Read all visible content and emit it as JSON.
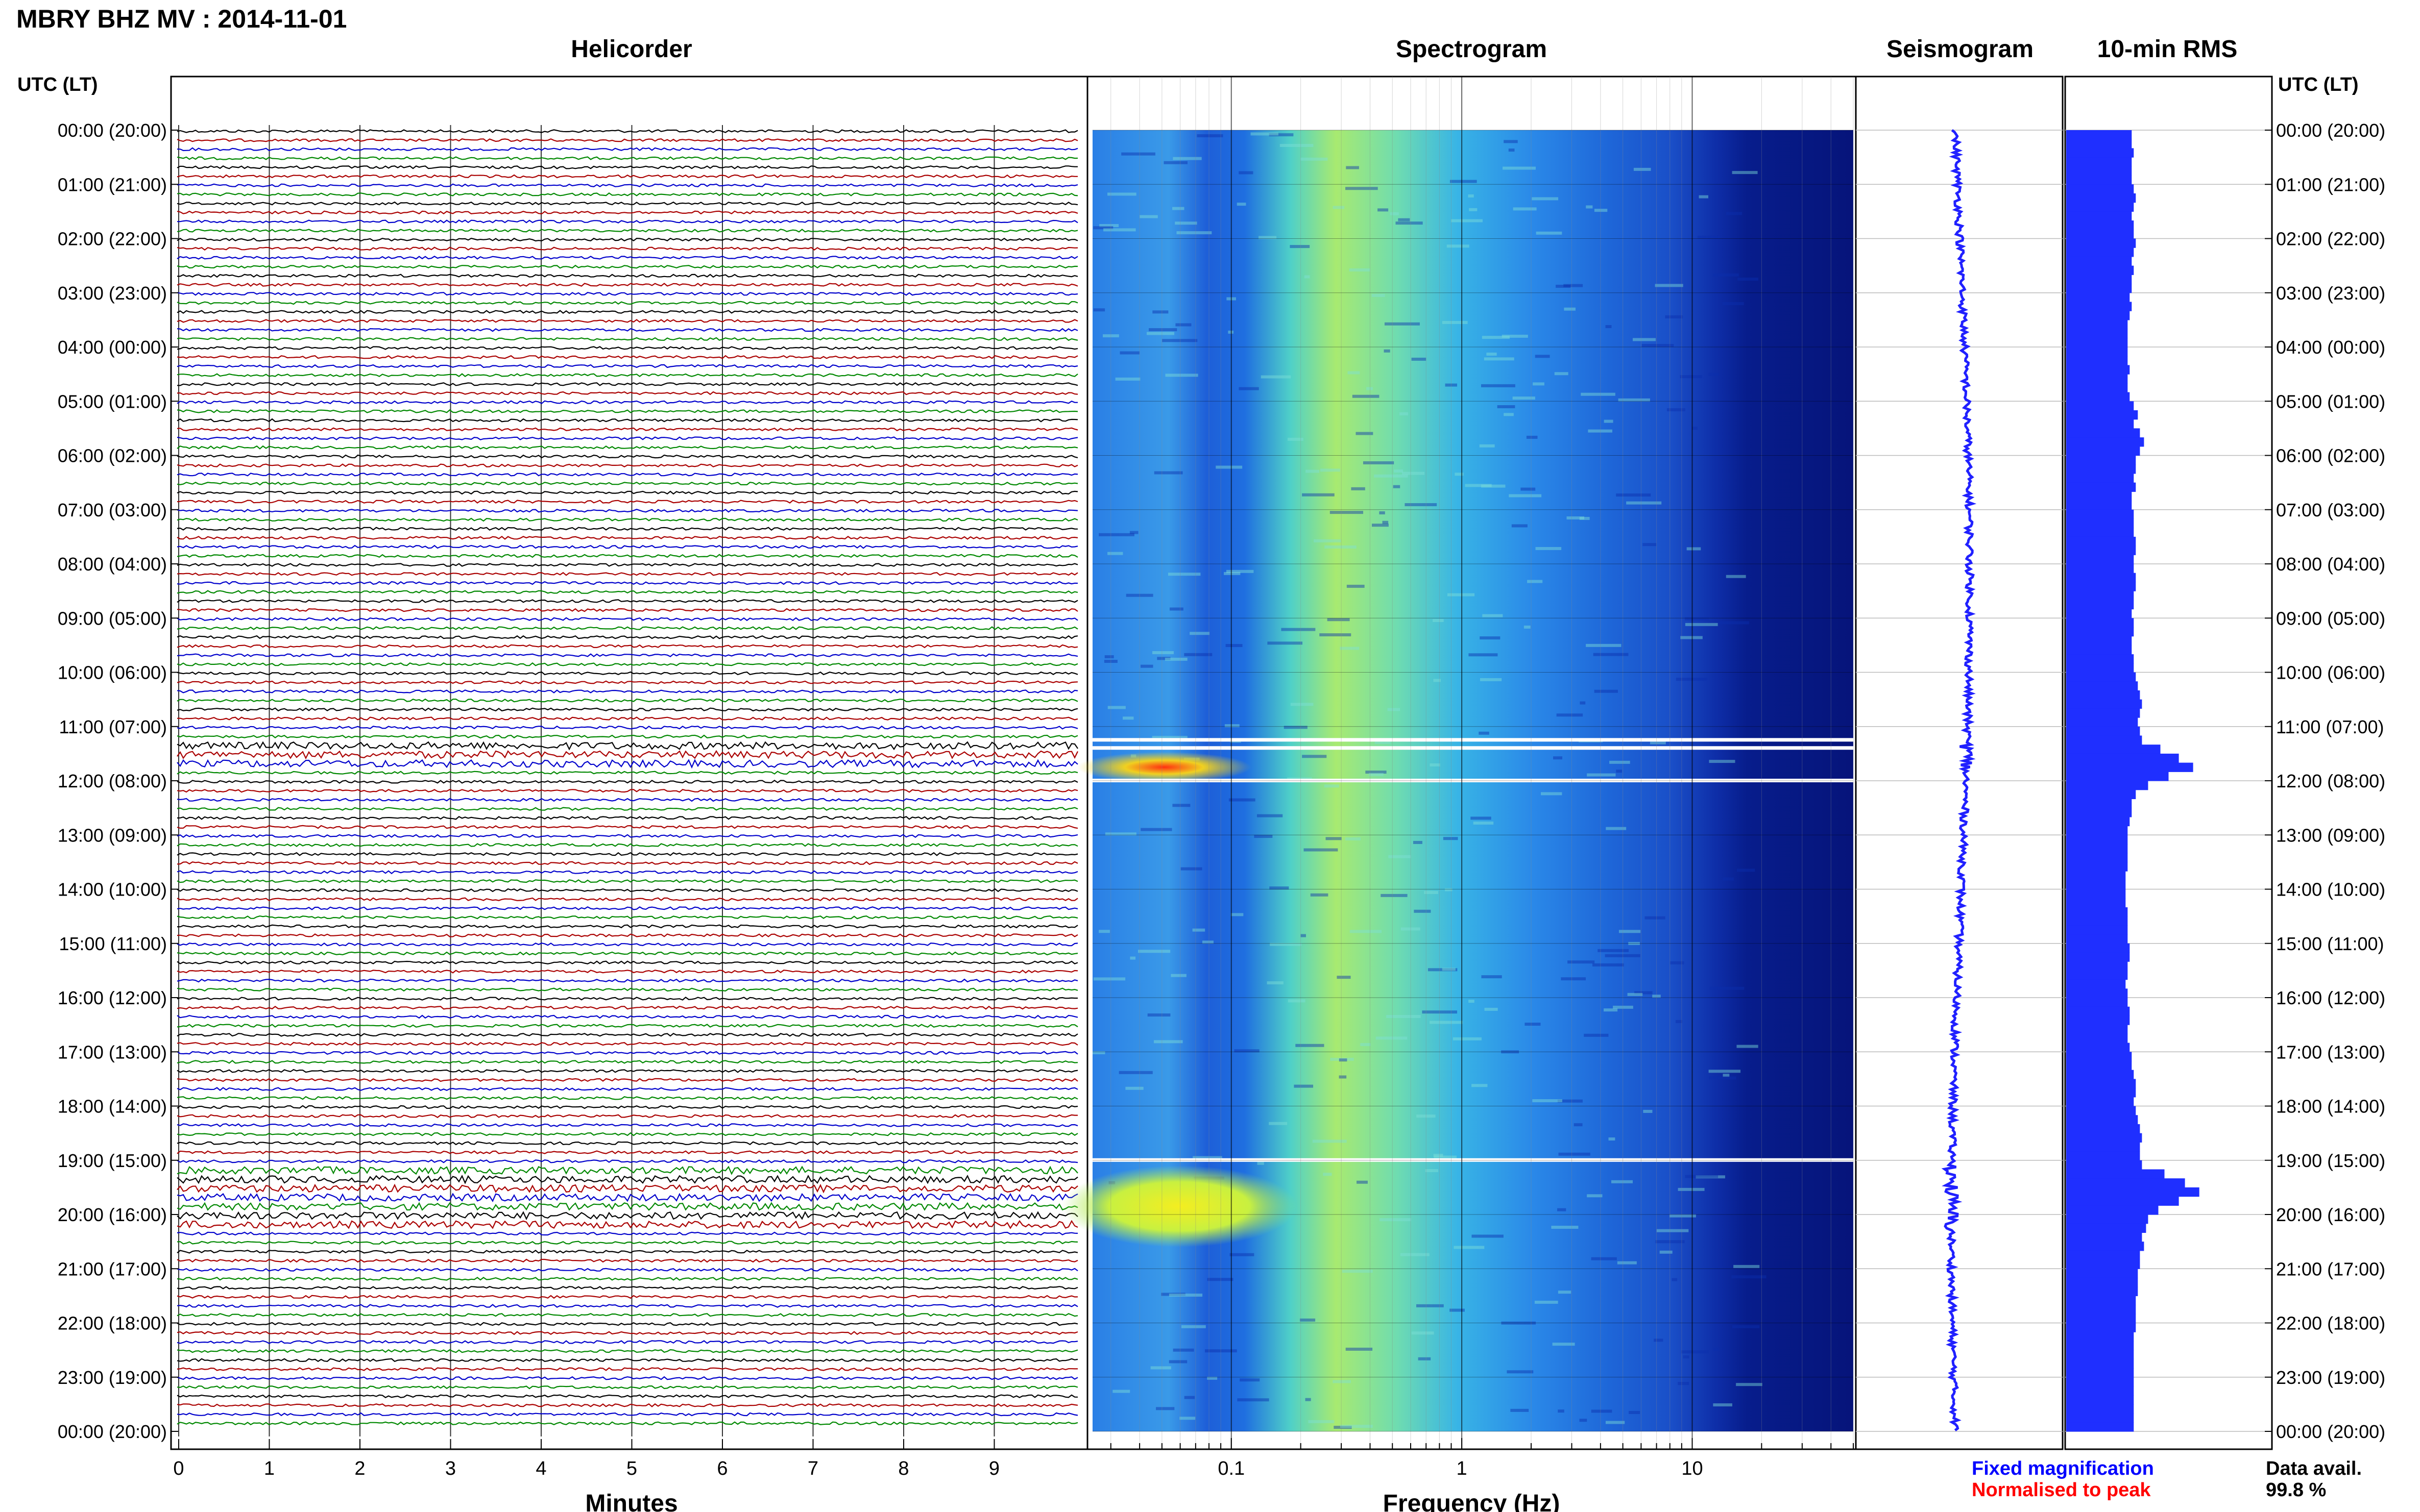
{
  "title": "MBRY BHZ MV : 2014-11-01",
  "panels": {
    "helicorder": "Helicorder",
    "spectrogram": "Spectrogram",
    "seismogram": "Seismogram",
    "rms": "10-min RMS"
  },
  "time_axis_label_left": "UTC (LT)",
  "time_axis_label_right": "UTC (LT)",
  "time_labels": [
    "00:00 (20:00)",
    "01:00 (21:00)",
    "02:00 (22:00)",
    "03:00 (23:00)",
    "04:00 (00:00)",
    "05:00 (01:00)",
    "06:00 (02:00)",
    "07:00 (03:00)",
    "08:00 (04:00)",
    "09:00 (05:00)",
    "10:00 (06:00)",
    "11:00 (07:00)",
    "12:00 (08:00)",
    "13:00 (09:00)",
    "14:00 (10:00)",
    "15:00 (11:00)",
    "16:00 (12:00)",
    "17:00 (13:00)",
    "18:00 (14:00)",
    "19:00 (15:00)",
    "20:00 (16:00)",
    "21:00 (17:00)",
    "22:00 (18:00)",
    "23:00 (19:00)",
    "00:00 (20:00)"
  ],
  "legend": {
    "fixed": "Fixed magnification",
    "normalised": "Normalised to peak",
    "fixed_color": "#0000ff",
    "normalised_color": "#ff0000"
  },
  "data_avail": {
    "label": "Data avail.",
    "value": "99.8 %"
  },
  "chart_data": [
    {
      "type": "line",
      "panel": "Helicorder",
      "xlabel": "Minutes",
      "x_ticks": [
        "0",
        "1",
        "2",
        "3",
        "4",
        "5",
        "6",
        "7",
        "8",
        "9"
      ],
      "xlim": [
        0,
        10
      ],
      "ylim": [
        0,
        24
      ],
      "rows": 144,
      "trace_colors": [
        "#000000",
        "#aa0000",
        "#0000cc",
        "#008800"
      ],
      "active_windows_hours": [
        [
          11.2,
          11.8
        ],
        [
          19.1,
          20.3
        ]
      ]
    },
    {
      "type": "heatmap",
      "panel": "Spectrogram",
      "xlabel": "Frequency (Hz)",
      "x_scale": "log",
      "x_ticks": [
        "0.1",
        "1",
        "10"
      ],
      "xlim": [
        0.025,
        50
      ],
      "ylim": [
        0,
        24
      ],
      "gaps_hours": [
        11.25,
        11.4,
        12.0,
        19.0
      ],
      "high_energy_hours": [
        [
          11.5,
          12.0
        ],
        [
          19.2,
          20.5
        ]
      ]
    },
    {
      "type": "line",
      "panel": "Seismogram",
      "ylim": [
        0,
        24
      ]
    },
    {
      "type": "bar",
      "panel": "10-min RMS",
      "orientation": "horizontal",
      "ylim": [
        0,
        24
      ],
      "values_relative": [
        0.32,
        0.32,
        0.33,
        0.32,
        0.32,
        0.32,
        0.33,
        0.34,
        0.33,
        0.32,
        0.33,
        0.33,
        0.34,
        0.33,
        0.32,
        0.33,
        0.32,
        0.32,
        0.31,
        0.32,
        0.31,
        0.3,
        0.3,
        0.3,
        0.3,
        0.3,
        0.31,
        0.3,
        0.3,
        0.31,
        0.33,
        0.35,
        0.33,
        0.36,
        0.38,
        0.36,
        0.34,
        0.34,
        0.33,
        0.34,
        0.32,
        0.32,
        0.33,
        0.33,
        0.33,
        0.34,
        0.34,
        0.33,
        0.33,
        0.34,
        0.34,
        0.33,
        0.33,
        0.32,
        0.33,
        0.33,
        0.32,
        0.32,
        0.33,
        0.33,
        0.34,
        0.35,
        0.36,
        0.37,
        0.36,
        0.35,
        0.36,
        0.37,
        0.46,
        0.55,
        0.62,
        0.5,
        0.4,
        0.34,
        0.32,
        0.32,
        0.31,
        0.3,
        0.3,
        0.3,
        0.3,
        0.3,
        0.29,
        0.29,
        0.29,
        0.29,
        0.3,
        0.3,
        0.3,
        0.3,
        0.31,
        0.31,
        0.3,
        0.3,
        0.29,
        0.3,
        0.3,
        0.31,
        0.31,
        0.3,
        0.3,
        0.31,
        0.32,
        0.32,
        0.33,
        0.34,
        0.34,
        0.33,
        0.34,
        0.35,
        0.36,
        0.37,
        0.36,
        0.36,
        0.37,
        0.48,
        0.58,
        0.65,
        0.55,
        0.45,
        0.4,
        0.39,
        0.37,
        0.38,
        0.36,
        0.36,
        0.35,
        0.35,
        0.35,
        0.34,
        0.34,
        0.34,
        0.34,
        0.33,
        0.33,
        0.33,
        0.33,
        0.33,
        0.33,
        0.33,
        0.33,
        0.33,
        0.33,
        0.33
      ]
    }
  ]
}
